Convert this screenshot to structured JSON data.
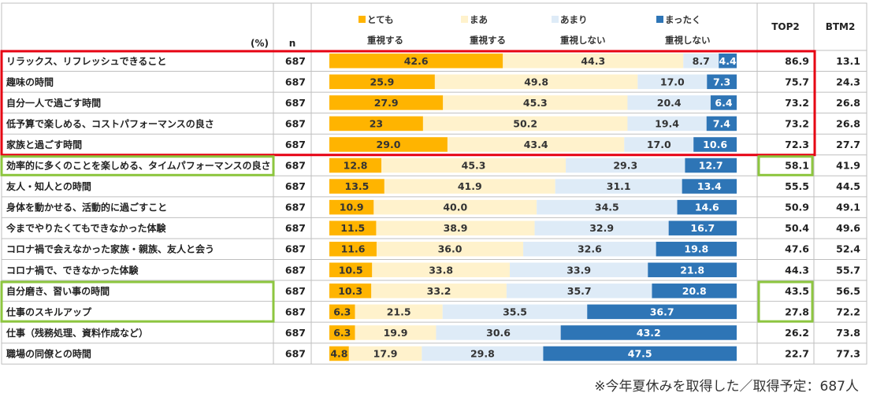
{
  "chart_data": {
    "type": "bar",
    "stacked": "100%",
    "unit_label": "(%)",
    "n_header": "n",
    "top2_header": "TOP2",
    "btm2_header": "BTM2",
    "legend_placement": "top",
    "series": [
      {
        "name_line1": "とても",
        "name_line2": "重視する",
        "color": "#FFB400"
      },
      {
        "name_line1": "まあ",
        "name_line2": "重視する",
        "color": "#FFF2CC"
      },
      {
        "name_line1": "あまり",
        "name_line2": "重視しない",
        "color": "#DEEBF7"
      },
      {
        "name_line1": "まったく",
        "name_line2": "重視しない",
        "color": "#2E75B6"
      }
    ],
    "rows": [
      {
        "label": "リラックス、リフレッシュできること",
        "n": "687",
        "values": [
          42.6,
          44.3,
          8.7,
          4.4
        ],
        "value_labels": [
          "42.6",
          "44.3",
          "8.7",
          "4.4"
        ],
        "top2": "86.9",
        "btm2": "13.1"
      },
      {
        "label": "趣味の時間",
        "n": "687",
        "values": [
          25.9,
          49.8,
          17.0,
          7.3
        ],
        "value_labels": [
          "25.9",
          "49.8",
          "17.0",
          "7.3"
        ],
        "top2": "75.7",
        "btm2": "24.3"
      },
      {
        "label": "自分一人で過ごす時間",
        "n": "687",
        "values": [
          27.9,
          45.3,
          20.4,
          6.4
        ],
        "value_labels": [
          "27.9",
          "45.3",
          "20.4",
          "6.4"
        ],
        "top2": "73.2",
        "btm2": "26.8"
      },
      {
        "label": "低予算で楽しめる、コストパフォーマンスの良さ",
        "n": "687",
        "values": [
          23.0,
          50.2,
          19.4,
          7.4
        ],
        "value_labels": [
          "23",
          "50.2",
          "19.4",
          "7.4"
        ],
        "top2": "73.2",
        "btm2": "26.8"
      },
      {
        "label": "家族と過ごす時間",
        "n": "687",
        "values": [
          29.0,
          43.4,
          17.0,
          10.6
        ],
        "value_labels": [
          "29.0",
          "43.4",
          "17.0",
          "10.6"
        ],
        "top2": "72.3",
        "btm2": "27.7"
      },
      {
        "label": "効率的に多くのことを楽しめる、タイムパフォーマンスの良さ",
        "n": "687",
        "values": [
          12.8,
          45.3,
          29.3,
          12.7
        ],
        "value_labels": [
          "12.8",
          "45.3",
          "29.3",
          "12.7"
        ],
        "top2": "58.1",
        "btm2": "41.9"
      },
      {
        "label": "友人・知人との時間",
        "n": "687",
        "values": [
          13.5,
          41.9,
          31.1,
          13.4
        ],
        "value_labels": [
          "13.5",
          "41.9",
          "31.1",
          "13.4"
        ],
        "top2": "55.5",
        "btm2": "44.5"
      },
      {
        "label": "身体を動かせる、活動的に過ごすこと",
        "n": "687",
        "values": [
          10.9,
          40.0,
          34.5,
          14.6
        ],
        "value_labels": [
          "10.9",
          "40.0",
          "34.5",
          "14.6"
        ],
        "top2": "50.9",
        "btm2": "49.1"
      },
      {
        "label": "今までやりたくてもできなかった体験",
        "n": "687",
        "values": [
          11.5,
          38.9,
          32.9,
          16.7
        ],
        "value_labels": [
          "11.5",
          "38.9",
          "32.9",
          "16.7"
        ],
        "top2": "50.4",
        "btm2": "49.6"
      },
      {
        "label": "コロナ禍で会えなかった家族・親族、友人と会う",
        "n": "687",
        "values": [
          11.6,
          36.0,
          32.6,
          19.8
        ],
        "value_labels": [
          "11.6",
          "36.0",
          "32.6",
          "19.8"
        ],
        "top2": "47.6",
        "btm2": "52.4"
      },
      {
        "label": "コロナ禍で、できなかった体験",
        "n": "687",
        "values": [
          10.5,
          33.8,
          33.9,
          21.8
        ],
        "value_labels": [
          "10.5",
          "33.8",
          "33.9",
          "21.8"
        ],
        "top2": "44.3",
        "btm2": "55.7"
      },
      {
        "label": "自分磨き、習い事の時間",
        "n": "687",
        "values": [
          10.3,
          33.2,
          35.7,
          20.8
        ],
        "value_labels": [
          "10.3",
          "33.2",
          "35.7",
          "20.8"
        ],
        "top2": "43.5",
        "btm2": "56.5"
      },
      {
        "label": "仕事のスキルアップ",
        "n": "687",
        "values": [
          6.3,
          21.5,
          35.5,
          36.7
        ],
        "value_labels": [
          "6.3",
          "21.5",
          "35.5",
          "36.7"
        ],
        "top2": "27.8",
        "btm2": "72.2"
      },
      {
        "label": "仕事（残務処理、資料作成など）",
        "n": "687",
        "values": [
          6.3,
          19.9,
          30.6,
          43.2
        ],
        "value_labels": [
          "6.3",
          "19.9",
          "30.6",
          "43.2"
        ],
        "top2": "26.2",
        "btm2": "73.8"
      },
      {
        "label": "職場の同僚との時間",
        "n": "687",
        "values": [
          4.8,
          17.9,
          29.8,
          47.5
        ],
        "value_labels": [
          "4.8",
          "17.9",
          "29.8",
          "47.5"
        ],
        "top2": "22.7",
        "btm2": "77.3"
      }
    ],
    "highlight_groups": [
      {
        "rows": [
          0,
          4
        ],
        "color": "#E60012",
        "note": "red frame"
      },
      {
        "rows": [
          5,
          5
        ],
        "color": "#8DC63F",
        "note": "green frame"
      },
      {
        "rows": [
          11,
          12
        ],
        "color": "#8DC63F",
        "note": "green frame"
      }
    ],
    "footnote": "※今年夏休みを取得した／取得予定：687人"
  }
}
